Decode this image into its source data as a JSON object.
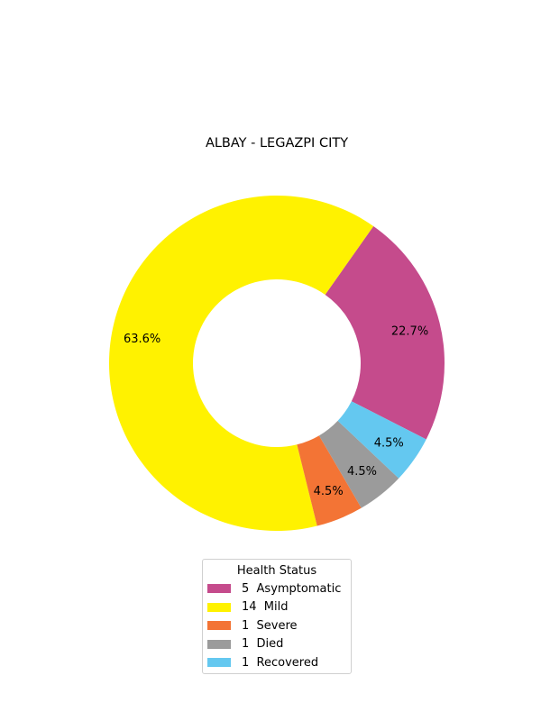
{
  "chart_data": {
    "type": "pie",
    "style": "donut",
    "title": "ALBAY - LEGAZPI CITY",
    "legend_title": "Health Status",
    "legend_position": "bottom-center",
    "slices": [
      {
        "label": "Asymptomatic",
        "count": 5,
        "legend_text": "5  Asymptomatic",
        "percent_label": "22.7%",
        "color": "#C54B8C"
      },
      {
        "label": "Mild",
        "count": 14,
        "legend_text": "14  Mild",
        "percent_label": "63.6%",
        "color": "#FFF200"
      },
      {
        "label": "Severe",
        "count": 1,
        "legend_text": "1  Severe",
        "percent_label": "4.5%",
        "color": "#F37435"
      },
      {
        "label": "Died",
        "count": 1,
        "legend_text": "1  Died",
        "percent_label": "4.5%",
        "color": "#9B9B9B"
      },
      {
        "label": "Recovered",
        "count": 1,
        "legend_text": "1  Recovered",
        "percent_label": "4.5%",
        "color": "#64C8F0"
      }
    ]
  }
}
